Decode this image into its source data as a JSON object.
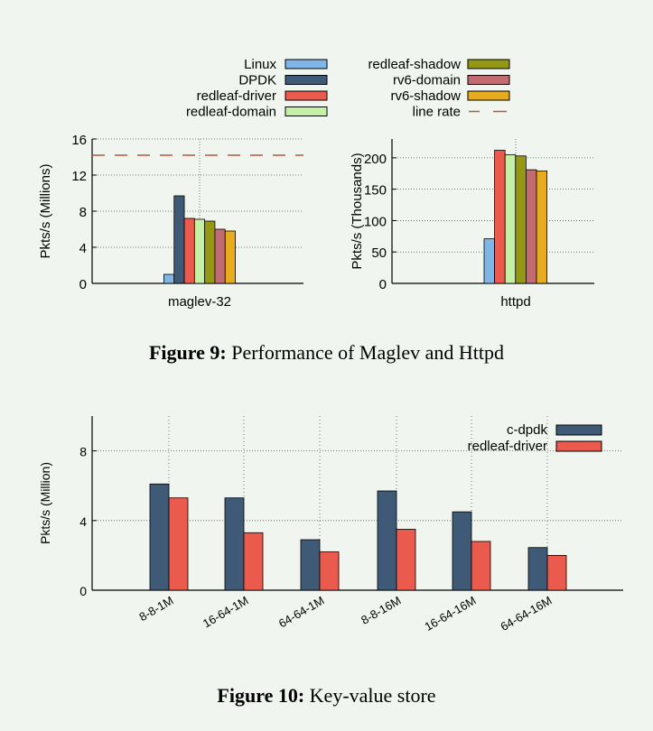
{
  "chart_data": [
    {
      "type": "bar",
      "title": "",
      "ylabel": "Pkts/s (Millions)",
      "categories": [
        "maglev-32"
      ],
      "ylim": [
        0,
        16
      ],
      "yticks": [
        "0",
        "4",
        "8",
        "12",
        "16"
      ],
      "line_rate": 14.2,
      "series": [
        {
          "name": "Linux",
          "values": [
            1.0
          ]
        },
        {
          "name": "DPDK",
          "values": [
            9.7
          ]
        },
        {
          "name": "redleaf-driver",
          "values": [
            7.2
          ]
        },
        {
          "name": "redleaf-domain",
          "values": [
            7.1
          ]
        },
        {
          "name": "redleaf-shadow",
          "values": [
            6.9
          ]
        },
        {
          "name": "rv6-domain",
          "values": [
            6.0
          ]
        },
        {
          "name": "rv6-shadow",
          "values": [
            5.8
          ]
        }
      ]
    },
    {
      "type": "bar",
      "title": "",
      "ylabel": "Pkts/s (Thousands)",
      "categories": [
        "httpd"
      ],
      "ylim": [
        0,
        230
      ],
      "yticks": [
        "0",
        "50",
        "100",
        "150",
        "200"
      ],
      "series": [
        {
          "name": "Linux",
          "values": [
            71
          ]
        },
        {
          "name": "redleaf-driver",
          "values": [
            212
          ]
        },
        {
          "name": "redleaf-domain",
          "values": [
            205
          ]
        },
        {
          "name": "redleaf-shadow",
          "values": [
            203
          ]
        },
        {
          "name": "rv6-domain",
          "values": [
            181
          ]
        },
        {
          "name": "rv6-shadow",
          "values": [
            179
          ]
        }
      ]
    },
    {
      "type": "bar",
      "title": "",
      "ylabel": "Pkts/s (Million)",
      "categories": [
        "8-8-1M",
        "16-64-1M",
        "64-64-1M",
        "8-8-16M",
        "16-64-16M",
        "64-64-16M"
      ],
      "ylim": [
        0,
        10
      ],
      "yticks": [
        "0",
        "4",
        "8"
      ],
      "series": [
        {
          "name": "c-dpdk",
          "values": [
            6.1,
            5.3,
            2.9,
            5.7,
            4.5,
            2.45
          ]
        },
        {
          "name": "redleaf-driver",
          "values": [
            5.3,
            3.3,
            2.2,
            3.5,
            2.8,
            2.0
          ]
        }
      ]
    }
  ],
  "legend_top": {
    "entries": [
      {
        "name": "Linux",
        "color": "#80b6e6"
      },
      {
        "name": "DPDK",
        "color": "#3f5a76"
      },
      {
        "name": "redleaf-driver",
        "color": "#ea5b4e"
      },
      {
        "name": "redleaf-domain",
        "color": "#c6f0a6"
      },
      {
        "name": "redleaf-shadow",
        "color": "#949815"
      },
      {
        "name": "rv6-domain",
        "color": "#c36b72"
      },
      {
        "name": "rv6-shadow",
        "color": "#e6ac1d"
      },
      {
        "name": "line rate",
        "color": "#b05a3c"
      }
    ]
  },
  "legend_bottom": {
    "entries": [
      {
        "name": "c-dpdk",
        "color": "#3f5a76"
      },
      {
        "name": "redleaf-driver",
        "color": "#ea5b4e"
      }
    ]
  },
  "captions": {
    "fig9_label": "Figure 9:",
    "fig9_text": " Performance of Maglev and Httpd",
    "fig10_label": "Figure 10:",
    "fig10_text": " Key-value store"
  }
}
